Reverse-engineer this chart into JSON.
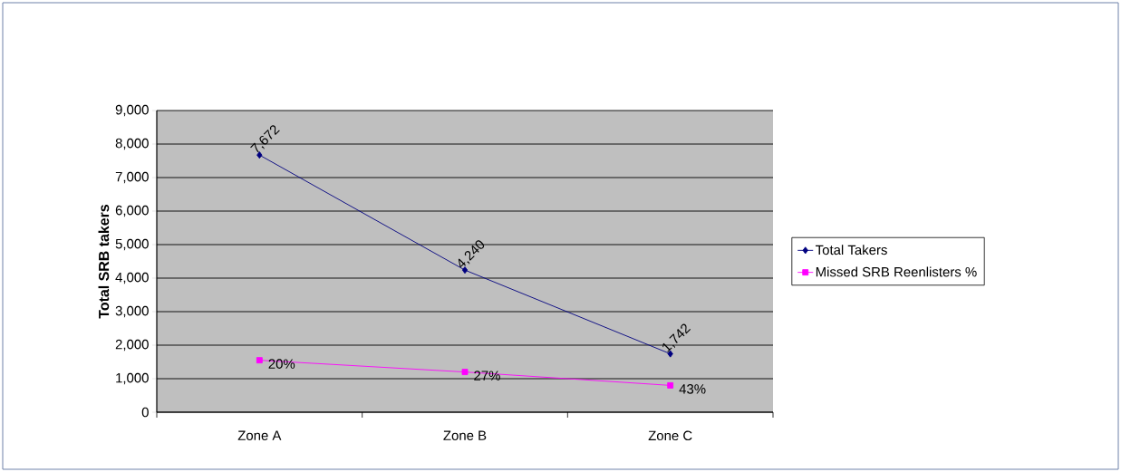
{
  "chart_data": {
    "type": "line",
    "ylabel": "Total SRB takers",
    "categories": [
      "Zone A",
      "Zone B",
      "Zone C"
    ],
    "series": [
      {
        "name": "Total Takers",
        "color": "#000080",
        "marker": "diamond",
        "values": [
          7672,
          4240,
          1742
        ],
        "value_labels": [
          "7,672",
          "4,240",
          "1,742"
        ]
      },
      {
        "name": "Missed SRB Reenlisters %",
        "color": "#ff00ff",
        "marker": "square",
        "values": [
          1550,
          1200,
          800
        ]
      }
    ],
    "annotations": [
      {
        "text": "20%",
        "x": "Zone A",
        "y": 1550
      },
      {
        "text": "27%",
        "x": "Zone B",
        "y": 1200
      },
      {
        "text": "43%",
        "x": "Zone C",
        "y": 800
      }
    ],
    "ylim": [
      0,
      9000
    ],
    "yticks": [
      {
        "value": 0,
        "label": "0"
      },
      {
        "value": 1000,
        "label": "1,000"
      },
      {
        "value": 2000,
        "label": "2,000"
      },
      {
        "value": 3000,
        "label": "3,000"
      },
      {
        "value": 4000,
        "label": "4,000"
      },
      {
        "value": 5000,
        "label": "5,000"
      },
      {
        "value": 6000,
        "label": "6,000"
      },
      {
        "value": 7000,
        "label": "7,000"
      },
      {
        "value": 8000,
        "label": "8,000"
      },
      {
        "value": 9000,
        "label": "9,000"
      }
    ],
    "grid": "y",
    "legend": "right"
  }
}
